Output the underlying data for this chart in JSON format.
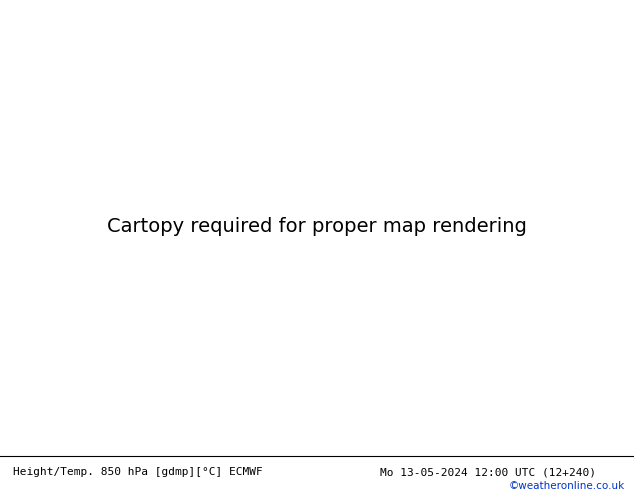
{
  "title_left": "Height/Temp. 850 hPa [gdmp][°C] ECMWF",
  "title_right": "Mo 13-05-2024 12:00 UTC (12+240)",
  "credit": "©weatheronline.co.uk",
  "figsize": [
    6.34,
    4.9
  ],
  "dpi": 100,
  "map_bg": "#e8e8e8",
  "sea_color": "#e0ecf8",
  "land_grey": "#c8c8c8",
  "land_green": "#b8dba0",
  "land_green2": "#c8e8a8"
}
